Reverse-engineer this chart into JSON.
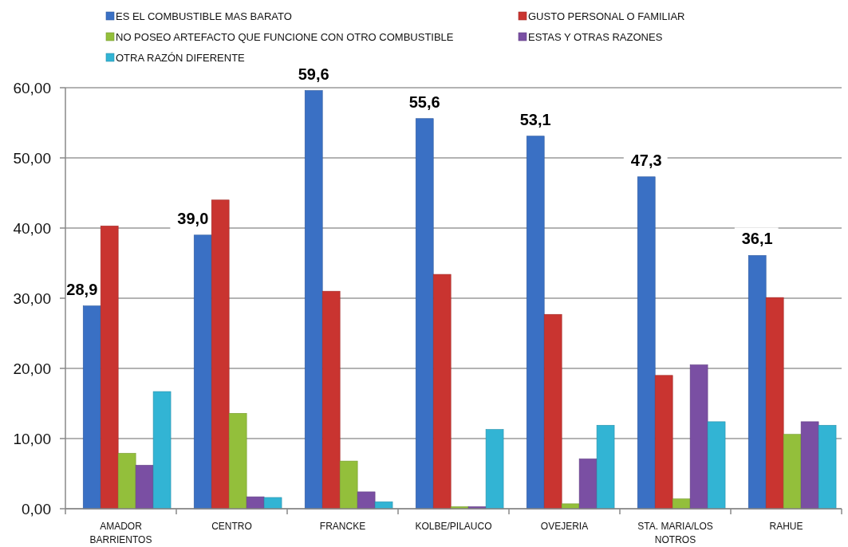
{
  "chart_data": {
    "type": "bar",
    "categories": [
      "AMADOR BARRIENTOS",
      "CENTRO",
      "FRANCKE",
      "KOLBE/PILAUCO",
      "OVEJERIA",
      "STA. MARIA/LOS NOTROS",
      "RAHUE"
    ],
    "series": [
      {
        "name": "ES EL COMBUSTIBLE MAS BARATO",
        "color": "#3a70c4",
        "values": [
          28.9,
          39.0,
          59.6,
          55.6,
          53.1,
          47.3,
          36.1
        ],
        "value_labels": [
          "28,9",
          "39,0",
          "59,6",
          "55,6",
          "53,1",
          "47,3",
          "36,1"
        ]
      },
      {
        "name": "GUSTO PERSONAL O FAMILIAR",
        "color": "#c93430",
        "values": [
          40.3,
          44.0,
          31.0,
          33.4,
          27.7,
          19.0,
          30.1
        ]
      },
      {
        "name": "NO POSEO ARTEFACTO QUE FUNCIONE CON OTRO COMBUSTIBLE",
        "color": "#93bf3b",
        "values": [
          7.9,
          13.6,
          6.8,
          0.3,
          0.7,
          1.4,
          10.6
        ]
      },
      {
        "name": "ESTAS Y OTRAS RAZONES",
        "color": "#7a4fa3",
        "values": [
          6.2,
          1.7,
          2.4,
          0.3,
          7.1,
          20.5,
          12.4
        ]
      },
      {
        "name": "OTRA RAZÓN DIFERENTE",
        "color": "#32b4d4",
        "values": [
          16.7,
          1.6,
          1.0,
          11.3,
          11.9,
          12.4,
          11.9
        ]
      }
    ],
    "ylim": [
      0,
      60
    ],
    "yticks": [
      {
        "value": 0,
        "label": "0,00"
      },
      {
        "value": 10,
        "label": "10,00"
      },
      {
        "value": 20,
        "label": "20,00"
      },
      {
        "value": 30,
        "label": "30,00"
      },
      {
        "value": 40,
        "label": "40,00"
      },
      {
        "value": 50,
        "label": "50,00"
      },
      {
        "value": 60,
        "label": "60,00"
      }
    ],
    "grid": "y",
    "legend": "top"
  }
}
